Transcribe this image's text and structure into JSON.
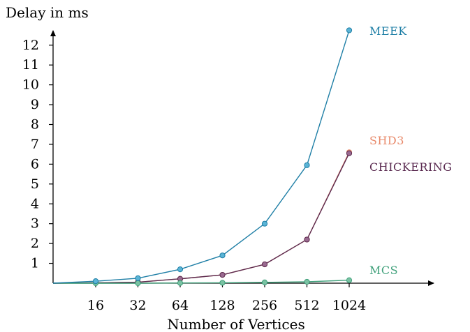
{
  "chart_data": {
    "type": "line",
    "ylabel": "Delay in ms",
    "xlabel": "Number of Vertices",
    "categories": [
      "16",
      "32",
      "64",
      "128",
      "256",
      "512",
      "1024"
    ],
    "y_ticks": [
      "1",
      "2",
      "3",
      "4",
      "5",
      "6",
      "7",
      "8",
      "9",
      "10",
      "11",
      "12"
    ],
    "ylim": [
      0,
      12.8
    ],
    "grid": false,
    "series": [
      {
        "name": "MEEK",
        "color": "#1f7fa6",
        "marker": "#5ab4d6",
        "values": [
          0.1,
          0.25,
          0.7,
          1.4,
          3.0,
          5.95,
          12.75
        ]
      },
      {
        "name": "SHD3",
        "color": "#e8896a",
        "marker": "#f0a080",
        "values": [
          0.02,
          0.05,
          0.22,
          0.42,
          0.95,
          2.2,
          6.6
        ]
      },
      {
        "name": "CHICKERING",
        "color": "#5a2a50",
        "marker": "#9a6a90",
        "values": [
          0.02,
          0.05,
          0.22,
          0.42,
          0.95,
          2.2,
          6.55
        ]
      },
      {
        "name": "MCS",
        "color": "#3fa07a",
        "marker": "#7ac2a3",
        "values": [
          0.0,
          0.0,
          0.01,
          0.02,
          0.04,
          0.07,
          0.15
        ]
      }
    ]
  }
}
